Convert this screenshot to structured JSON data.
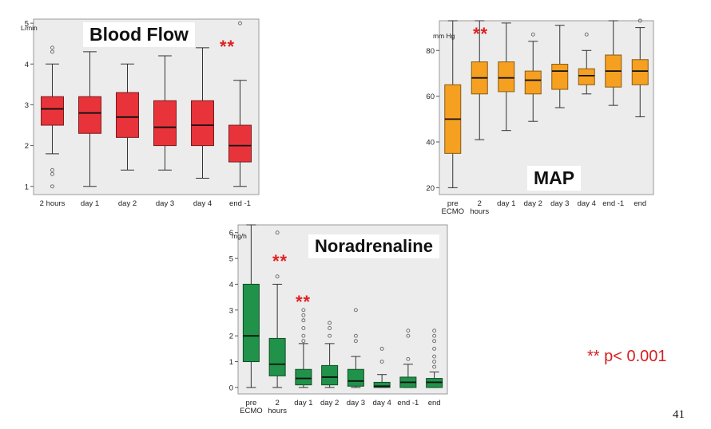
{
  "chart_data": [
    {
      "type": "box",
      "title": "Blood Flow",
      "unit_label": "L/min",
      "significance": "**",
      "colors": {
        "fill": "#e8333a",
        "stroke": "#7a1c1c",
        "background": "#ececec"
      },
      "ylim": [
        0.8,
        5.1
      ],
      "yticks": [
        1,
        2,
        3,
        4,
        5
      ],
      "categories": [
        "2 hours",
        "day 1",
        "day 2",
        "day 3",
        "day 4",
        "end -1"
      ],
      "boxes": [
        {
          "whisker_low": 1.8,
          "q1": 2.5,
          "median": 2.9,
          "q3": 3.2,
          "whisker_high": 4.0,
          "outliers": [
            1.0,
            1.3,
            1.4,
            4.3,
            4.4
          ]
        },
        {
          "whisker_low": 1.0,
          "q1": 2.3,
          "median": 2.8,
          "q3": 3.2,
          "whisker_high": 4.3,
          "outliers": []
        },
        {
          "whisker_low": 1.4,
          "q1": 2.2,
          "median": 2.7,
          "q3": 3.3,
          "whisker_high": 4.0,
          "outliers": []
        },
        {
          "whisker_low": 1.4,
          "q1": 2.0,
          "median": 2.45,
          "q3": 3.1,
          "whisker_high": 4.2,
          "outliers": []
        },
        {
          "whisker_low": 1.2,
          "q1": 2.0,
          "median": 2.5,
          "q3": 3.1,
          "whisker_high": 4.4,
          "outliers": []
        },
        {
          "whisker_low": 1.0,
          "q1": 1.6,
          "median": 2.0,
          "q3": 2.5,
          "whisker_high": 3.6,
          "outliers": [
            5.0
          ]
        }
      ],
      "star_over_category": 5
    },
    {
      "type": "box",
      "title": "MAP",
      "unit_label": "mm Hg",
      "significance": "**",
      "colors": {
        "fill": "#f5a021",
        "stroke": "#8a5a12",
        "background": "#ececec"
      },
      "ylim": [
        17,
        93
      ],
      "yticks": [
        20,
        40,
        60,
        80
      ],
      "categories": [
        "pre\nECMO",
        "2\nhours",
        "day 1",
        "day 2",
        "day 3",
        "day 4",
        "end -1",
        "end"
      ],
      "boxes": [
        {
          "whisker_low": 20,
          "q1": 35,
          "median": 50,
          "q3": 65,
          "whisker_high": 93,
          "outliers": []
        },
        {
          "whisker_low": 41,
          "q1": 61,
          "median": 68,
          "q3": 75,
          "whisker_high": 93,
          "outliers": []
        },
        {
          "whisker_low": 45,
          "q1": 62,
          "median": 68,
          "q3": 75,
          "whisker_high": 92,
          "outliers": []
        },
        {
          "whisker_low": 49,
          "q1": 61,
          "median": 67,
          "q3": 71,
          "whisker_high": 84,
          "outliers": [
            87
          ]
        },
        {
          "whisker_low": 55,
          "q1": 63,
          "median": 71,
          "q3": 74,
          "whisker_high": 91,
          "outliers": []
        },
        {
          "whisker_low": 61,
          "q1": 65,
          "median": 69,
          "q3": 72,
          "whisker_high": 80,
          "outliers": [
            87
          ]
        },
        {
          "whisker_low": 56,
          "q1": 64,
          "median": 71,
          "q3": 78,
          "whisker_high": 93,
          "outliers": []
        },
        {
          "whisker_low": 51,
          "q1": 65,
          "median": 71,
          "q3": 76,
          "whisker_high": 90,
          "outliers": [
            93
          ]
        }
      ],
      "star_over_category": 1
    },
    {
      "type": "box",
      "title": "Noradrenaline",
      "unit_label": "mg/h",
      "significance": "**",
      "colors": {
        "fill": "#20924a",
        "stroke": "#0e4d25",
        "background": "#ececec"
      },
      "ylim": [
        -0.25,
        6.3
      ],
      "yticks": [
        0,
        1,
        2,
        3,
        4,
        5,
        6
      ],
      "categories": [
        "pre\nECMO",
        "2\nhours",
        "day 1",
        "day 2",
        "day 3",
        "day 4",
        "end -1",
        "end"
      ],
      "boxes": [
        {
          "whisker_low": 0,
          "q1": 1.0,
          "median": 2.0,
          "q3": 4.0,
          "whisker_high": 6.3,
          "outliers": []
        },
        {
          "whisker_low": 0,
          "q1": 0.45,
          "median": 0.9,
          "q3": 1.9,
          "whisker_high": 4.0,
          "outliers": [
            4.3,
            6.0
          ]
        },
        {
          "whisker_low": 0,
          "q1": 0.1,
          "median": 0.35,
          "q3": 0.7,
          "whisker_high": 1.7,
          "outliers": [
            1.8,
            2.0,
            2.3,
            2.6,
            2.8,
            3.0
          ]
        },
        {
          "whisker_low": 0,
          "q1": 0.1,
          "median": 0.4,
          "q3": 0.85,
          "whisker_high": 1.7,
          "outliers": [
            2.0,
            2.3,
            2.5
          ]
        },
        {
          "whisker_low": 0,
          "q1": 0.05,
          "median": 0.25,
          "q3": 0.7,
          "whisker_high": 1.2,
          "outliers": [
            1.8,
            2.0,
            3.0
          ]
        },
        {
          "whisker_low": 0,
          "q1": 0.0,
          "median": 0.05,
          "q3": 0.2,
          "whisker_high": 0.5,
          "outliers": [
            1.0,
            1.5
          ]
        },
        {
          "whisker_low": 0,
          "q1": 0.0,
          "median": 0.2,
          "q3": 0.4,
          "whisker_high": 0.9,
          "outliers": [
            1.1,
            2.0,
            2.2
          ]
        },
        {
          "whisker_low": 0,
          "q1": 0.0,
          "median": 0.2,
          "q3": 0.35,
          "whisker_high": 0.6,
          "outliers": [
            0.8,
            1.0,
            1.2,
            1.5,
            1.8,
            2.0,
            2.2
          ]
        }
      ],
      "star_over_category": [
        1,
        2
      ]
    }
  ],
  "footnote": "** p< 0.001",
  "page_number": "41"
}
